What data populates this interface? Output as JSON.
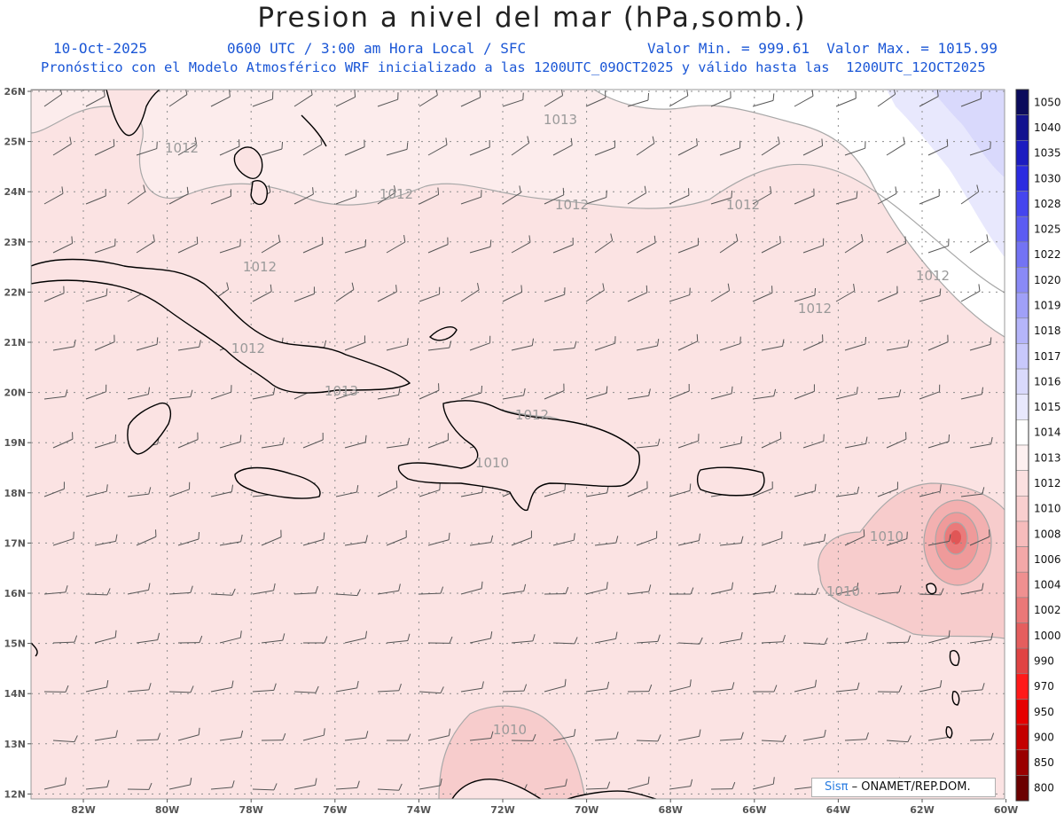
{
  "header": {
    "title": "Presion a nivel del mar (hPa,somb.)",
    "date": "10-Oct-2025",
    "time_info": "0600 UTC / 3:00 am Hora Local / SFC",
    "min_max": "Valor Min. = 999.61  Valor Max. = 1015.99",
    "forecast_info": "Pronóstico con el Modelo Atmosférico WRF inicializado a las 1200UTC_09OCT2025 y válido hasta las  1200UTC_12OCT2025"
  },
  "credit": {
    "sis": "Sisπ",
    "rest": " – ONAMET/REP.DOM."
  },
  "axes": {
    "lat_labels": [
      "26N",
      "25N",
      "24N",
      "23N",
      "22N",
      "21N",
      "20N",
      "19N",
      "18N",
      "17N",
      "16N",
      "15N",
      "14N",
      "13N",
      "12N"
    ],
    "lon_labels": [
      "82W",
      "80W",
      "78W",
      "76W",
      "74W",
      "72W",
      "70W",
      "68W",
      "66W",
      "64W",
      "62W",
      "60W"
    ]
  },
  "colorbar": {
    "levels": [
      "1050",
      "1040",
      "1035",
      "1030",
      "1028",
      "1025",
      "1022",
      "1020",
      "1019",
      "1018",
      "1017",
      "1016",
      "1015",
      "1014",
      "1013",
      "1012",
      "1010",
      "1008",
      "1006",
      "1004",
      "1002",
      "1000",
      "990",
      "970",
      "950",
      "900",
      "850",
      "800"
    ],
    "colors": [
      "#0b0b5c",
      "#13138f",
      "#1c1cc0",
      "#2b2be0",
      "#4545ee",
      "#5c5cf2",
      "#7373f4",
      "#8a8af6",
      "#a0a0f8",
      "#b5b5fa",
      "#c8c8fb",
      "#d9d9fc",
      "#e8e8fd",
      "#ffffff",
      "#fdf0f0",
      "#fbe0e0",
      "#f9cfcf",
      "#f6bcbc",
      "#f3a8a8",
      "#ef9090",
      "#ea7878",
      "#e55e5e",
      "#e04444",
      "#ff1a1a",
      "#e60000",
      "#c40000",
      "#9a0000",
      "#6b0000"
    ]
  },
  "contour_labels": [
    "1013",
    "1012",
    "1012",
    "1012",
    "1012",
    "1012",
    "1012",
    "1012",
    "1012",
    "1013",
    "1012",
    "1010",
    "1010",
    "1010",
    "1010"
  ],
  "colors": {
    "base": "#fbe3e3",
    "low": "#f7cccc",
    "center": "#e06060",
    "high": "#e6e6fb"
  }
}
